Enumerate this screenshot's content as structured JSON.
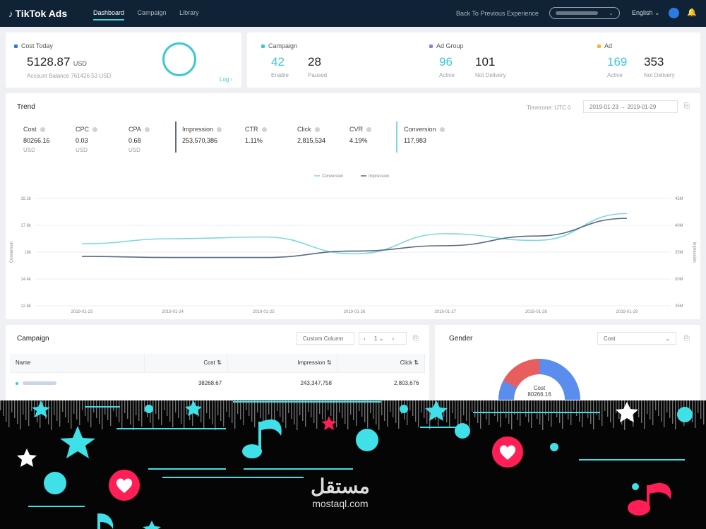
{
  "topbar": {
    "brand": "TikTok Ads",
    "nav": [
      "Dashboard",
      "Campaign",
      "Library"
    ],
    "back_link": "Back To Previous Experience",
    "language": "English ⌄",
    "bell_icon": "🔔"
  },
  "cost_today": {
    "label": "Cost Today",
    "value": "5128.87",
    "unit": "USD",
    "balance": "Account Balance 761426.53 USD",
    "log_link": "Log ›"
  },
  "summary": {
    "campaign": {
      "label": "Campaign",
      "v1": "42",
      "l1": "Enable",
      "v2": "28",
      "l2": "Paused"
    },
    "ad_group": {
      "label": "Ad Group",
      "v1": "96",
      "l1": "Active",
      "v2": "101",
      "l2": "Not Delivery"
    },
    "ad": {
      "label": "Ad",
      "v1": "169",
      "l1": "Active",
      "v2": "353",
      "l2": "Not Delivery"
    }
  },
  "trend": {
    "title": "Trend",
    "timezone": "Timezone: UTC 0",
    "date_range": "2019-01-23  →  2019-01-29",
    "metrics": [
      {
        "name": "Cost",
        "value": "80266.16",
        "unit": "USD"
      },
      {
        "name": "CPC",
        "value": "0.03",
        "unit": "USD"
      },
      {
        "name": "CPA",
        "value": "0.68",
        "unit": "USD"
      },
      {
        "name": "Impression",
        "value": "253,570,386",
        "unit": ""
      },
      {
        "name": "CTR",
        "value": "1.11%",
        "unit": ""
      },
      {
        "name": "Click",
        "value": "2,815,534",
        "unit": ""
      },
      {
        "name": "CVR",
        "value": "4.19%",
        "unit": ""
      },
      {
        "name": "Conversion",
        "value": "117,983",
        "unit": ""
      }
    ]
  },
  "chart_data": {
    "type": "line",
    "x": [
      "2019-01-23",
      "2019-01-24",
      "2019-01-25",
      "2019-01-26",
      "2019-01-27",
      "2019-01-28",
      "2019-01-29"
    ],
    "series": [
      {
        "name": "Conversion",
        "axis": "left",
        "color": "#7fd8df",
        "values": [
          16500,
          16800,
          16900,
          15900,
          17100,
          16700,
          18300
        ]
      },
      {
        "name": "Impression",
        "axis": "right",
        "color": "#5b6b82",
        "values": [
          34200,
          34000,
          34000,
          35200,
          36200,
          38000,
          41300
        ]
      }
    ],
    "ylabel_left": "Conversion",
    "ylabel_right": "Impression",
    "yticks_left": [
      "12.8k",
      "14.4k",
      "16k",
      "17.6k",
      "19.2k"
    ],
    "yticks_right": [
      "25M",
      "30M",
      "35M",
      "40M",
      "45M"
    ],
    "ylim_left": [
      12800,
      19200
    ],
    "ylim_right": [
      25000,
      45000
    ],
    "grid": true,
    "legend": "top-center"
  },
  "campaign_table": {
    "title": "Campaign",
    "custom_column": "Custom Column",
    "page": "1",
    "columns": [
      "Name",
      "Cost",
      "Impression",
      "Click"
    ],
    "rows": [
      {
        "cost": "38268.67",
        "impression": "243,347,758",
        "click": "2,803,676"
      }
    ]
  },
  "gender": {
    "title": "Gender",
    "select": "Cost",
    "center_label": "Cost",
    "center_value": "80266.16"
  },
  "watermark": {
    "arabic": "مستقل",
    "latin": "mostaql.com"
  },
  "colors": {
    "teal": "#3cc8d6",
    "navy": "#0f2236",
    "pink": "#ff1e56",
    "blue": "#5b8def",
    "red": "#e85d5d"
  }
}
